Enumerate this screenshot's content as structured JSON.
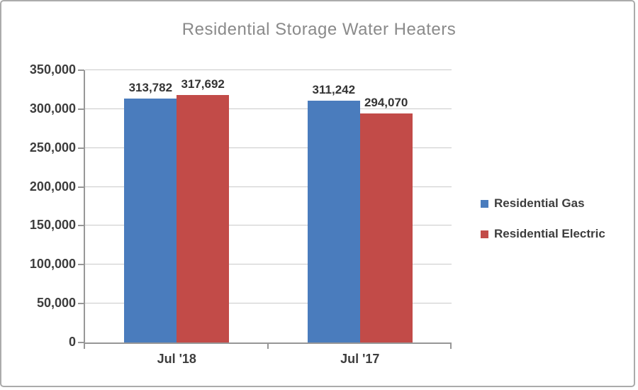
{
  "window": {
    "background": "#ffffff",
    "border_color": "#ababab"
  },
  "chart_data": {
    "type": "bar",
    "title": "Residential Storage Water Heaters",
    "categories": [
      "Jul '18",
      "Jul '17"
    ],
    "series": [
      {
        "name": "Residential Gas",
        "color": "#4a7cbd",
        "values": [
          313782,
          311242
        ],
        "labels": [
          "313,782",
          "311,242"
        ]
      },
      {
        "name": "Residential Electric",
        "color": "#c24b48",
        "values": [
          317692,
          294070
        ],
        "labels": [
          "317,692",
          "294,070"
        ]
      }
    ],
    "ylim": [
      0,
      350000
    ],
    "yticks": [
      {
        "value": 0,
        "label": "0"
      },
      {
        "value": 50000,
        "label": "50,000"
      },
      {
        "value": 100000,
        "label": "100,000"
      },
      {
        "value": 150000,
        "label": "150,000"
      },
      {
        "value": 200000,
        "label": "200,000"
      },
      {
        "value": 250000,
        "label": "250,000"
      },
      {
        "value": 300000,
        "label": "300,000"
      },
      {
        "value": 350000,
        "label": "350,000"
      }
    ],
    "grid": "horizontal",
    "legend_position": "right",
    "title_color": "#8a8a8a",
    "text_color": "#3d3d3d",
    "gridline_color": "#c9c9c9",
    "axis_color": "#979797"
  }
}
